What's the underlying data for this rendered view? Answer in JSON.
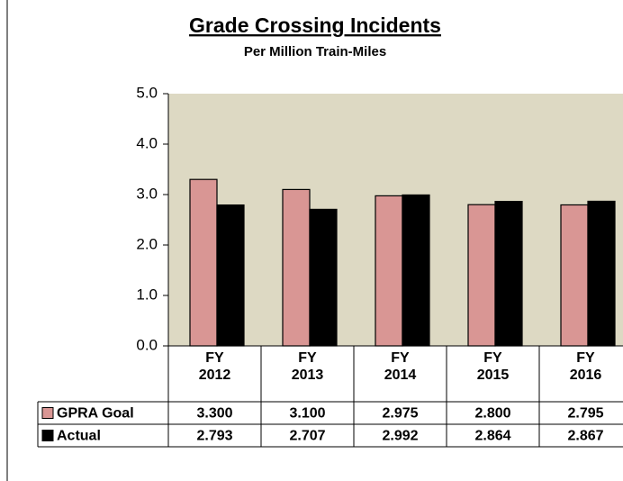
{
  "chart_data": {
    "type": "bar",
    "title": "Grade Crossing Incidents",
    "subtitle": "Per Million Train-Miles",
    "categories": [
      "FY 2012",
      "FY 2013",
      "FY 2014",
      "FY 2015",
      "FY 2016"
    ],
    "series": [
      {
        "name": "GPRA Goal",
        "color": "#d99694",
        "values": [
          3.3,
          3.1,
          2.975,
          2.8,
          2.795
        ],
        "value_labels": [
          "3.300",
          "3.100",
          "2.975",
          "2.800",
          "2.795"
        ]
      },
      {
        "name": "Actual",
        "color": "#000000",
        "values": [
          2.793,
          2.707,
          2.992,
          2.864,
          2.867
        ],
        "value_labels": [
          "2.793",
          "2.707",
          "2.992",
          "2.864",
          "2.867"
        ]
      }
    ],
    "ylim": [
      0,
      5
    ],
    "yticks": [
      {
        "value": 0,
        "label": "0.0"
      },
      {
        "value": 1,
        "label": "1.0"
      },
      {
        "value": 2,
        "label": "2.0"
      },
      {
        "value": 3,
        "label": "3.0"
      },
      {
        "value": 4,
        "label": "4.0"
      },
      {
        "value": 5,
        "label": "5.0"
      }
    ],
    "background": "#ddd9c3",
    "data_table": true
  }
}
